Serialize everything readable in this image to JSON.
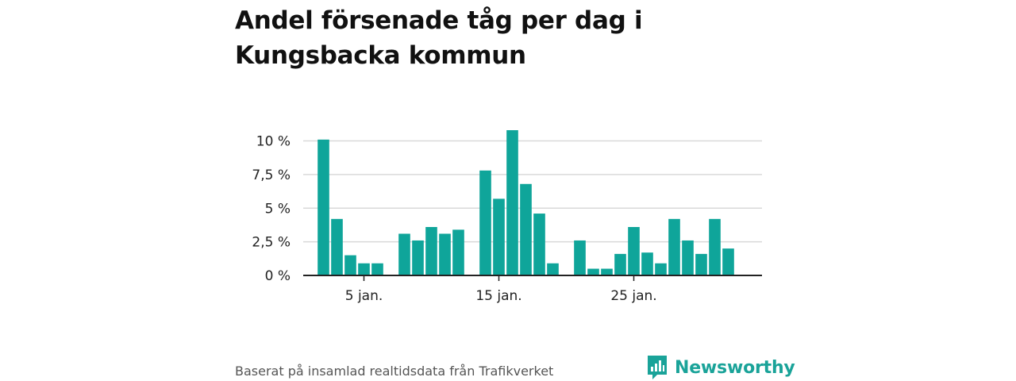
{
  "title": "Andel försenade tåg per dag i Kungsbacka kommun",
  "footer": {
    "source": "Baserat på insamlad realtidsdata från Trafikverket",
    "brand": "Newsworthy"
  },
  "colors": {
    "bar": "#0fa59a",
    "brand": "#1aa399",
    "grid": "#d9d9d9",
    "axis": "#222222"
  },
  "icons": {
    "logo": "bar-chart-speech-bubble-icon"
  },
  "chart_data": {
    "type": "bar",
    "x": [
      2,
      3,
      4,
      5,
      6,
      8,
      9,
      10,
      11,
      12,
      14,
      15,
      16,
      17,
      18,
      19,
      21,
      22,
      23,
      24,
      25,
      26,
      27,
      28,
      29,
      30,
      31,
      32
    ],
    "values": [
      10.1,
      4.2,
      1.5,
      0.9,
      0.9,
      3.1,
      2.6,
      3.6,
      3.1,
      3.4,
      7.8,
      5.7,
      10.8,
      6.8,
      4.6,
      0.9,
      2.6,
      0.5,
      0.5,
      1.6,
      3.6,
      1.7,
      0.9,
      4.2,
      2.6,
      1.6,
      4.2,
      2.0
    ],
    "xlim": [
      0.5,
      34.5
    ],
    "ylim": [
      0,
      10.8
    ],
    "y_ticks": [
      0,
      2.5,
      5,
      7.5,
      10
    ],
    "y_tick_labels": [
      "0 %",
      "2,5 %",
      "5 %",
      "7,5 %",
      "10 %"
    ],
    "x_ticks": [
      5,
      15,
      25
    ],
    "x_tick_labels": [
      "5 jan.",
      "15 jan.",
      "25 jan."
    ],
    "grid": true,
    "legend": "none",
    "xlabel": "",
    "ylabel": ""
  }
}
